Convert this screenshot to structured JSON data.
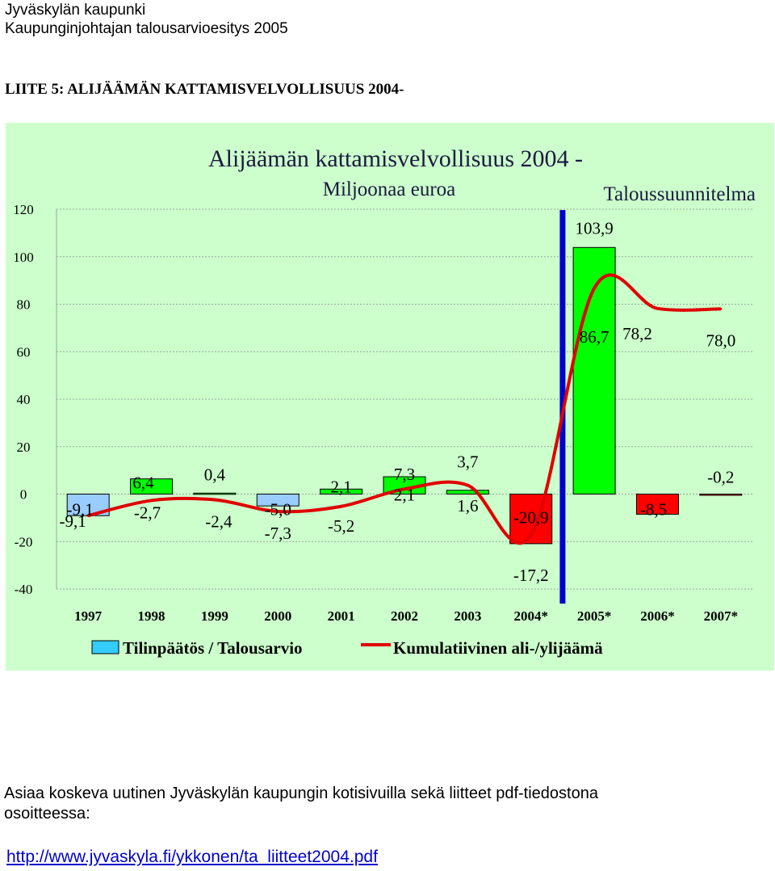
{
  "header": {
    "line1": "Jyväskylän kaupunki",
    "line2": "Kaupunginjohtajan talousarvioesitys 2005"
  },
  "section_title": "LIITE 5: ALIJÄÄMÄN KATTAMISVELVOLLISUUS 2004-",
  "chart_data": {
    "type": "bar",
    "title": "Alijäämän kattamisvelvollisuus 2004 -",
    "subtitle": "Miljoonaa euroa",
    "annotation": "Taloussuunnitelma",
    "categories": [
      "1997",
      "1998",
      "1999",
      "2000",
      "2001",
      "2002",
      "2003",
      "2004*",
      "2005*",
      "2006*",
      "2007*"
    ],
    "ylim": [
      -40,
      120
    ],
    "yticks": [
      120,
      100,
      80,
      60,
      40,
      20,
      0,
      -20,
      -40
    ],
    "grid": true,
    "legend_position": "bottom",
    "divider_after_category": "2004*",
    "series": [
      {
        "name": "Tilinpäätös / Talousarvio",
        "type": "bar",
        "values": [
          -9.1,
          6.4,
          0.4,
          -5.0,
          2.1,
          7.3,
          1.6,
          -20.9,
          103.9,
          -8.5,
          -0.2
        ],
        "labels": [
          "-9,1",
          "6,4",
          "0,4",
          "-5,0",
          "2,1",
          "7,3",
          "1,6",
          "-20,9",
          "103,9",
          "-8,5",
          "-0,2"
        ],
        "colors": [
          "#99ccff",
          "#00ff00",
          "#00ff00",
          "#99ccff",
          "#00ff00",
          "#00ff00",
          "#00ff00",
          "#ff0000",
          "#00ff00",
          "#ff0000",
          "#ff0000"
        ]
      },
      {
        "name": "Kumulatiivinen ali-/ylijäämä",
        "type": "line",
        "color": "#e00000",
        "values": [
          -9.1,
          -2.7,
          -2.4,
          -7.3,
          -5.2,
          2.1,
          3.7,
          -17.2,
          86.7,
          78.2,
          78.0
        ],
        "labels": [
          "-9,1",
          "-2,7",
          "-2,4",
          "-7,3",
          "-5,2",
          "2,1",
          "3,7",
          "-17,2",
          "86,7",
          "78,2",
          "78,0"
        ]
      }
    ],
    "legend_swatch_color": "#33ccff"
  },
  "footer": {
    "line1": "Asiaa koskeva uutinen Jyväskylän kaupungin kotisivuilla sekä liitteet pdf-tiedostona",
    "line2": "osoitteessa:",
    "link": "http://www.jyvaskyla.fi/ykkonen/ta_liitteet2004.pdf"
  }
}
